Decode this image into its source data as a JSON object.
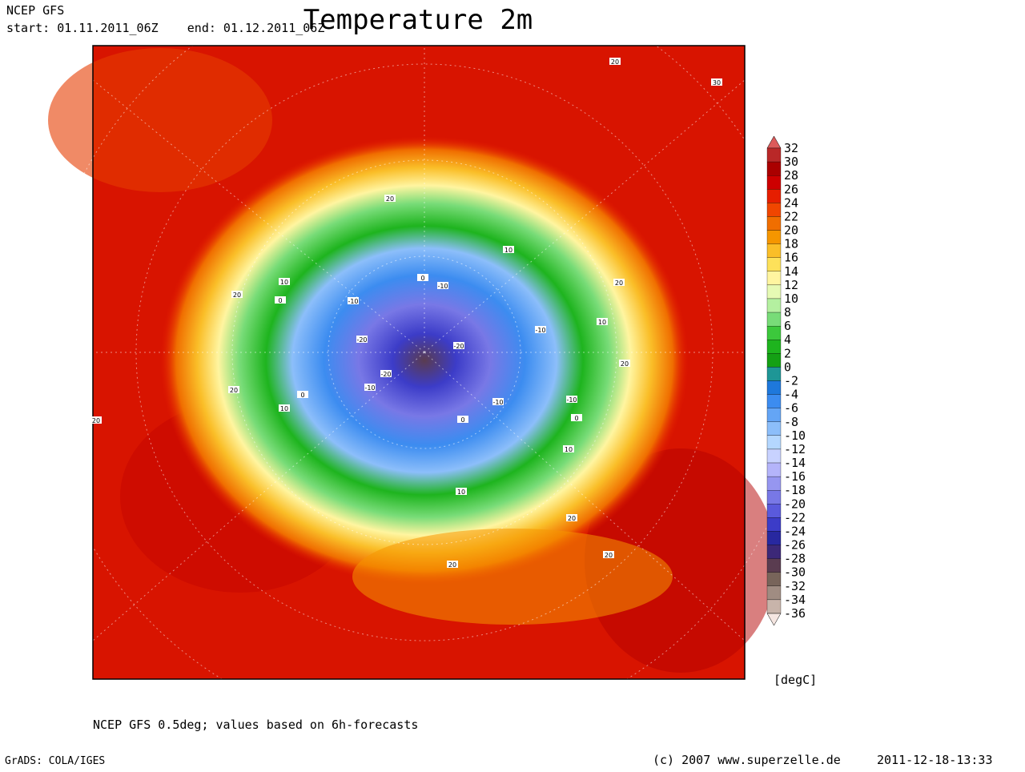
{
  "header": {
    "model": "NCEP GFS",
    "period": "start: 01.11.2011_06Z    end: 01.12.2011_06Z",
    "title": "Temperature 2m"
  },
  "legend": {
    "values": [
      32,
      30,
      28,
      26,
      24,
      22,
      20,
      18,
      16,
      14,
      12,
      10,
      8,
      6,
      4,
      2,
      0,
      -2,
      -4,
      -6,
      -8,
      -10,
      -12,
      -14,
      -16,
      -18,
      -20,
      -22,
      -24,
      -26,
      -28,
      -30,
      -32,
      -34,
      -36
    ],
    "colors": [
      "#dc5a5a",
      "#b92828",
      "#aa0000",
      "#cd0000",
      "#e61e00",
      "#f04600",
      "#f06e00",
      "#f59600",
      "#fabe28",
      "#fde15a",
      "#fff5a0",
      "#e6fab4",
      "#b4f0a0",
      "#78dc78",
      "#3cc83c",
      "#1eb41e",
      "#14a014",
      "#1e9696",
      "#1e78dc",
      "#3c8cf0",
      "#64a5f5",
      "#8cbefa",
      "#b4d7ff",
      "#c8d2ff",
      "#b4b4fa",
      "#9696f0",
      "#7878e6",
      "#5a5adc",
      "#3c3cc8",
      "#2828a0",
      "#3c2878",
      "#5a3c50",
      "#78645a",
      "#a08c82",
      "#c8b4aa",
      "#f5e6e1"
    ],
    "unit": "[degC]"
  },
  "map": {
    "contour_labels": [
      20,
      30,
      20,
      10,
      10,
      0,
      -10,
      20,
      0,
      -10,
      20,
      -20,
      -20,
      -10,
      10,
      -20,
      -10,
      -10,
      -10,
      0,
      10,
      0,
      0,
      20,
      20,
      10,
      10,
      20,
      20,
      20,
      20
    ]
  },
  "footer": {
    "note": "NCEP GFS 0.5deg; values based on 6h-forecasts",
    "software": "GrADS: COLA/IGES",
    "copyright": "(c) 2007 www.superzelle.de",
    "timestamp": "2011-12-18-13:33"
  }
}
